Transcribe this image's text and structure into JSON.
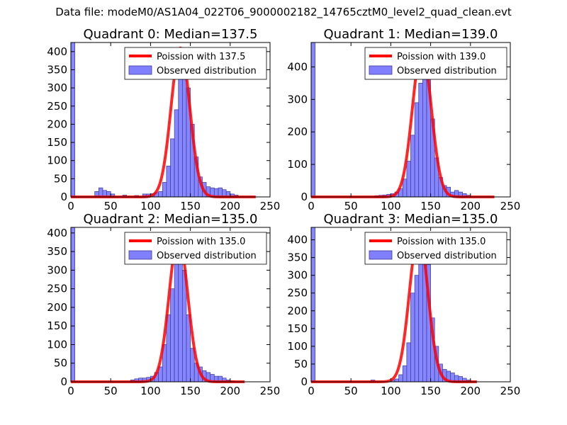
{
  "suptitle": "Data file: modeM0/AS1A04_022T06_9000002182_14765cztM0_level2_quad_clean.evt",
  "colors": {
    "hist_fill": "#8080ff",
    "hist_edge": "#3a3a99",
    "poisson": "#ff0000"
  },
  "chart_data": [
    {
      "type": "bar",
      "title": "Quadrant 0: Median=137.5",
      "poisson_label": "Poission with 137.5",
      "hist_label": "Observed distribution",
      "median": 137.5,
      "xlim": [
        0,
        250
      ],
      "ylim": [
        0,
        425
      ],
      "xticks": [
        0,
        50,
        100,
        150,
        200,
        250
      ],
      "yticks": [
        0,
        50,
        100,
        150,
        200,
        250,
        300,
        350,
        400
      ],
      "bin_width": 5,
      "bins": [
        [
          0,
          425
        ],
        [
          30,
          15
        ],
        [
          35,
          25
        ],
        [
          40,
          18
        ],
        [
          45,
          15
        ],
        [
          50,
          8
        ],
        [
          65,
          5
        ],
        [
          80,
          4
        ],
        [
          90,
          8
        ],
        [
          95,
          8
        ],
        [
          100,
          9
        ],
        [
          105,
          12
        ],
        [
          110,
          15
        ],
        [
          115,
          40
        ],
        [
          120,
          85
        ],
        [
          125,
          160
        ],
        [
          130,
          240
        ],
        [
          135,
          340
        ],
        [
          140,
          400
        ],
        [
          145,
          300
        ],
        [
          150,
          200
        ],
        [
          155,
          110
        ],
        [
          160,
          55
        ],
        [
          165,
          40
        ],
        [
          170,
          28
        ],
        [
          175,
          25
        ],
        [
          180,
          23
        ],
        [
          185,
          25
        ],
        [
          190,
          20
        ],
        [
          195,
          15
        ],
        [
          200,
          8
        ],
        [
          205,
          5
        ]
      ],
      "poisson_peak": 410,
      "poisson_range": [
        0,
        232
      ]
    },
    {
      "type": "bar",
      "title": "Quadrant 1: Median=139.0",
      "poisson_label": "Poission with 139.0",
      "hist_label": "Observed distribution",
      "median": 139.0,
      "xlim": [
        0,
        250
      ],
      "ylim": [
        0,
        475
      ],
      "xticks": [
        0,
        50,
        100,
        150,
        200,
        250
      ],
      "yticks": [
        0,
        100,
        200,
        300,
        400
      ],
      "bin_width": 5,
      "bins": [
        [
          0,
          475
        ],
        [
          80,
          4
        ],
        [
          85,
          5
        ],
        [
          90,
          6
        ],
        [
          95,
          8
        ],
        [
          100,
          10
        ],
        [
          105,
          15
        ],
        [
          110,
          25
        ],
        [
          115,
          55
        ],
        [
          120,
          110
        ],
        [
          125,
          190
        ],
        [
          130,
          290
        ],
        [
          135,
          350
        ],
        [
          140,
          450
        ],
        [
          145,
          400
        ],
        [
          150,
          240
        ],
        [
          155,
          120
        ],
        [
          160,
          60
        ],
        [
          165,
          35
        ],
        [
          170,
          30
        ],
        [
          175,
          15
        ],
        [
          180,
          20
        ],
        [
          185,
          15
        ],
        [
          190,
          10
        ],
        [
          195,
          5
        ]
      ],
      "poisson_peak": 455,
      "poisson_range": [
        0,
        230
      ]
    },
    {
      "type": "bar",
      "title": "Quadrant 2: Median=135.0",
      "poisson_label": "Poission with 135.0",
      "hist_label": "Observed distribution",
      "median": 135.0,
      "xlim": [
        0,
        250
      ],
      "ylim": [
        0,
        415
      ],
      "xticks": [
        0,
        50,
        100,
        150,
        200,
        250
      ],
      "yticks": [
        0,
        50,
        100,
        150,
        200,
        250,
        300,
        350,
        400
      ],
      "bin_width": 5,
      "bins": [
        [
          0,
          415
        ],
        [
          75,
          5
        ],
        [
          80,
          8
        ],
        [
          85,
          10
        ],
        [
          90,
          10
        ],
        [
          95,
          12
        ],
        [
          100,
          15
        ],
        [
          105,
          25
        ],
        [
          110,
          40
        ],
        [
          115,
          100
        ],
        [
          120,
          180
        ],
        [
          125,
          250
        ],
        [
          130,
          320
        ],
        [
          135,
          395
        ],
        [
          140,
          300
        ],
        [
          145,
          180
        ],
        [
          150,
          90
        ],
        [
          155,
          50
        ],
        [
          160,
          40
        ],
        [
          165,
          30
        ],
        [
          170,
          25
        ],
        [
          175,
          20
        ],
        [
          180,
          15
        ],
        [
          185,
          15
        ],
        [
          190,
          10
        ],
        [
          195,
          5
        ],
        [
          200,
          3
        ]
      ],
      "poisson_peak": 390,
      "poisson_range": [
        0,
        218
      ]
    },
    {
      "type": "bar",
      "title": "Quadrant 3: Median=135.0",
      "poisson_label": "Poission with 135.0",
      "hist_label": "Observed distribution",
      "median": 135.0,
      "xlim": [
        0,
        250
      ],
      "ylim": [
        0,
        435
      ],
      "xticks": [
        0,
        50,
        100,
        150,
        200,
        250
      ],
      "yticks": [
        0,
        50,
        100,
        150,
        200,
        250,
        300,
        350,
        400
      ],
      "bin_width": 5,
      "bins": [
        [
          0,
          435
        ],
        [
          75,
          5
        ],
        [
          100,
          5
        ],
        [
          105,
          8
        ],
        [
          110,
          20
        ],
        [
          115,
          45
        ],
        [
          120,
          110
        ],
        [
          125,
          250
        ],
        [
          130,
          300
        ],
        [
          135,
          410
        ],
        [
          140,
          400
        ],
        [
          145,
          330
        ],
        [
          150,
          180
        ],
        [
          155,
          100
        ],
        [
          160,
          50
        ],
        [
          165,
          35
        ],
        [
          170,
          30
        ],
        [
          175,
          25
        ],
        [
          180,
          18
        ],
        [
          185,
          15
        ],
        [
          190,
          10
        ],
        [
          195,
          5
        ]
      ],
      "poisson_peak": 418,
      "poisson_range": [
        0,
        208
      ]
    }
  ]
}
